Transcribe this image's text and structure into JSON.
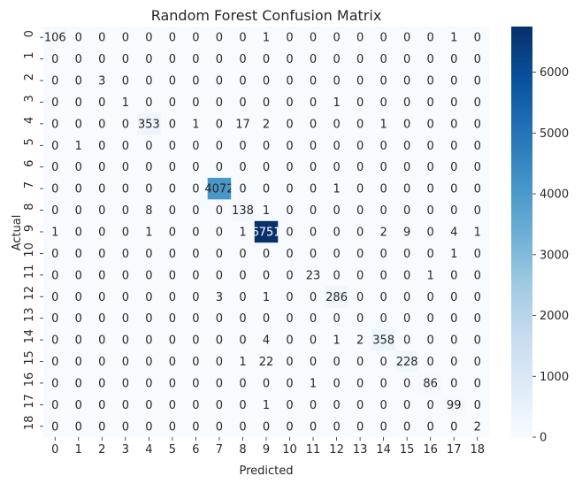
{
  "chart_data": {
    "type": "heatmap",
    "title": "Random Forest Confusion Matrix",
    "xlabel": "Predicted",
    "ylabel": "Actual",
    "x_categories": [
      "0",
      "1",
      "2",
      "3",
      "4",
      "5",
      "6",
      "7",
      "8",
      "9",
      "10",
      "11",
      "12",
      "13",
      "14",
      "15",
      "16",
      "17",
      "18"
    ],
    "y_categories": [
      "0",
      "1",
      "2",
      "3",
      "4",
      "5",
      "6",
      "7",
      "8",
      "9",
      "10",
      "11",
      "12",
      "13",
      "14",
      "15",
      "16",
      "17",
      "18"
    ],
    "values": [
      [
        106,
        0,
        0,
        0,
        0,
        0,
        0,
        0,
        0,
        1,
        0,
        0,
        0,
        0,
        0,
        0,
        0,
        1,
        0
      ],
      [
        0,
        0,
        0,
        0,
        0,
        0,
        0,
        0,
        0,
        0,
        0,
        0,
        0,
        0,
        0,
        0,
        0,
        0,
        0
      ],
      [
        0,
        0,
        3,
        0,
        0,
        0,
        0,
        0,
        0,
        0,
        0,
        0,
        0,
        0,
        0,
        0,
        0,
        0,
        0
      ],
      [
        0,
        0,
        0,
        1,
        0,
        0,
        0,
        0,
        0,
        0,
        0,
        0,
        1,
        0,
        0,
        0,
        0,
        0,
        0
      ],
      [
        0,
        0,
        0,
        0,
        353,
        0,
        1,
        0,
        17,
        2,
        0,
        0,
        0,
        0,
        1,
        0,
        0,
        0,
        0
      ],
      [
        0,
        1,
        0,
        0,
        0,
        0,
        0,
        0,
        0,
        0,
        0,
        0,
        0,
        0,
        0,
        0,
        0,
        0,
        0
      ],
      [
        0,
        0,
        0,
        0,
        0,
        0,
        0,
        0,
        0,
        0,
        0,
        0,
        0,
        0,
        0,
        0,
        0,
        0,
        0
      ],
      [
        0,
        0,
        0,
        0,
        0,
        0,
        0,
        4072,
        0,
        0,
        0,
        0,
        1,
        0,
        0,
        0,
        0,
        0,
        0
      ],
      [
        0,
        0,
        0,
        0,
        8,
        0,
        0,
        0,
        138,
        1,
        0,
        0,
        0,
        0,
        0,
        0,
        0,
        0,
        0
      ],
      [
        1,
        0,
        0,
        0,
        1,
        0,
        0,
        0,
        1,
        6751,
        0,
        0,
        0,
        0,
        2,
        9,
        0,
        4,
        1
      ],
      [
        0,
        0,
        0,
        0,
        0,
        0,
        0,
        0,
        0,
        0,
        0,
        0,
        0,
        0,
        0,
        0,
        0,
        1,
        0
      ],
      [
        0,
        0,
        0,
        0,
        0,
        0,
        0,
        0,
        0,
        0,
        0,
        23,
        0,
        0,
        0,
        0,
        1,
        0,
        0
      ],
      [
        0,
        0,
        0,
        0,
        0,
        0,
        0,
        3,
        0,
        1,
        0,
        0,
        286,
        0,
        0,
        0,
        0,
        0,
        0
      ],
      [
        0,
        0,
        0,
        0,
        0,
        0,
        0,
        0,
        0,
        0,
        0,
        0,
        0,
        0,
        0,
        0,
        0,
        0,
        0
      ],
      [
        0,
        0,
        0,
        0,
        0,
        0,
        0,
        0,
        0,
        4,
        0,
        0,
        1,
        2,
        358,
        0,
        0,
        0,
        0
      ],
      [
        0,
        0,
        0,
        0,
        0,
        0,
        0,
        0,
        1,
        22,
        0,
        0,
        0,
        0,
        0,
        228,
        0,
        0,
        0
      ],
      [
        0,
        0,
        0,
        0,
        0,
        0,
        0,
        0,
        0,
        0,
        0,
        1,
        0,
        0,
        0,
        0,
        86,
        0,
        0
      ],
      [
        0,
        0,
        0,
        0,
        0,
        0,
        0,
        0,
        0,
        1,
        0,
        0,
        0,
        0,
        0,
        0,
        0,
        99,
        0
      ],
      [
        0,
        0,
        0,
        0,
        0,
        0,
        0,
        0,
        0,
        0,
        0,
        0,
        0,
        0,
        0,
        0,
        0,
        0,
        2
      ]
    ],
    "colormap": "Blues",
    "vmin": 0,
    "vmax": 6751,
    "colorbar_ticks": [
      0,
      1000,
      2000,
      3000,
      4000,
      5000,
      6000
    ],
    "colors": {
      "low": "#f7fbff",
      "high": "#08306b",
      "text_dark": "#262626",
      "text_light": "#ffffff"
    }
  }
}
